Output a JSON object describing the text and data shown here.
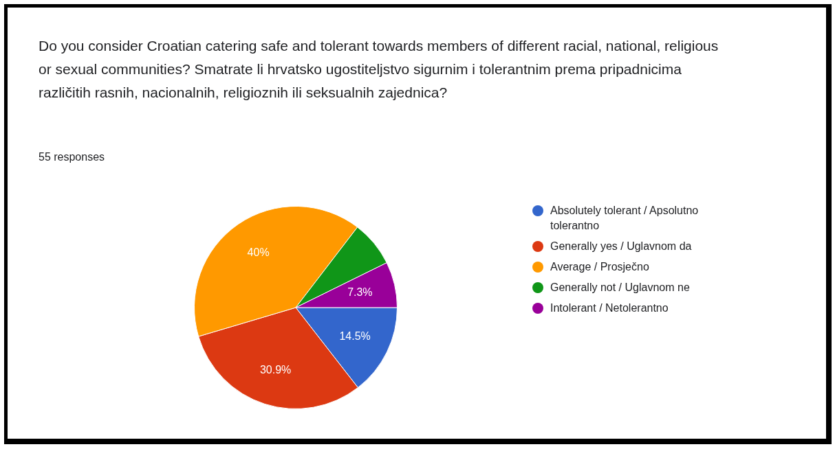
{
  "chart_data": {
    "type": "pie",
    "title": "Do you consider Croatian catering safe and tolerant towards members of different racial, national, religious or sexual communities? Smatrate li hrvatsko ugostiteljstvo sigurnim i tolerantnim prema pripadnicima različitih rasnih, nacionalnih, religioznih ili seksualnih zajednica?",
    "subtitle": "55 responses",
    "categories": [
      "Absolutely tolerant / Apsolutno tolerantno",
      "Generally yes / Uglavnom da",
      "Average / Prosječno",
      "Generally not / Uglavnom ne",
      "Intolerant / Netolerantno"
    ],
    "values": [
      14.5,
      30.9,
      40,
      7.3,
      7.3
    ],
    "value_labels": [
      "14.5%",
      "30.9%",
      "40%",
      null,
      "7.3%"
    ],
    "colors": [
      "#3366cc",
      "#dc3912",
      "#ff9900",
      "#109618",
      "#990099"
    ],
    "legend": "right"
  }
}
